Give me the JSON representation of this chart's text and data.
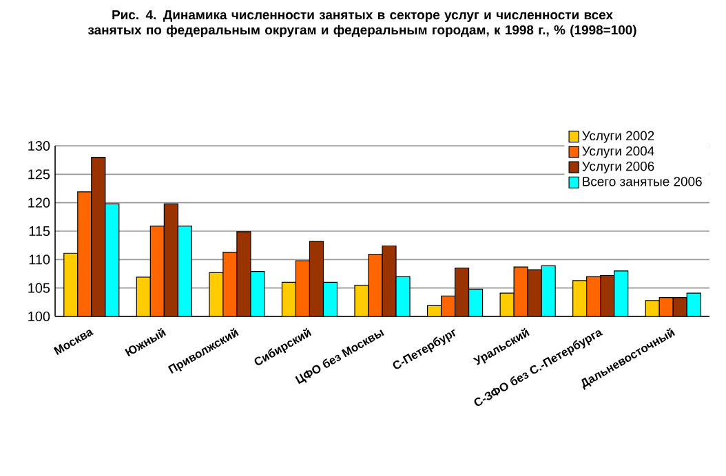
{
  "chart_data": {
    "type": "bar",
    "title": "Рис. 4. Динамика численности занятых в секторе услуг и численности всех занятых по федеральным округам и федеральным городам, к 1998 г., % (1998=100)",
    "categories": [
      "Москва",
      "Южный",
      "Приволжский",
      "Сибирский",
      "ЦФО без Москвы",
      "С-Петербург",
      "Уральский",
      "С-ЗФО без С.-Петербурга",
      "Дальневосточный"
    ],
    "series": [
      {
        "name": "Услуги 2002",
        "color": "#ffcc00",
        "values": [
          111.1,
          106.9,
          107.7,
          106.0,
          105.5,
          101.9,
          104.1,
          106.3,
          102.8
        ]
      },
      {
        "name": "Услуги 2004",
        "color": "#ff6600",
        "values": [
          121.9,
          115.9,
          111.3,
          109.8,
          110.9,
          103.6,
          108.7,
          107.0,
          103.3
        ]
      },
      {
        "name": "Услуги 2006",
        "color": "#993300",
        "values": [
          128.0,
          119.8,
          114.9,
          113.2,
          112.4,
          108.5,
          108.2,
          107.2,
          103.3
        ]
      },
      {
        "name": "Всего занятые 2006",
        "color": "#00ffff",
        "values": [
          119.8,
          115.9,
          107.9,
          106.0,
          107.0,
          104.8,
          108.9,
          108.0,
          104.1
        ]
      }
    ],
    "ylim": [
      100,
      130
    ],
    "yticks": [
      100,
      105,
      110,
      115,
      120,
      125,
      130
    ],
    "grid": "y",
    "legend": "top right"
  }
}
